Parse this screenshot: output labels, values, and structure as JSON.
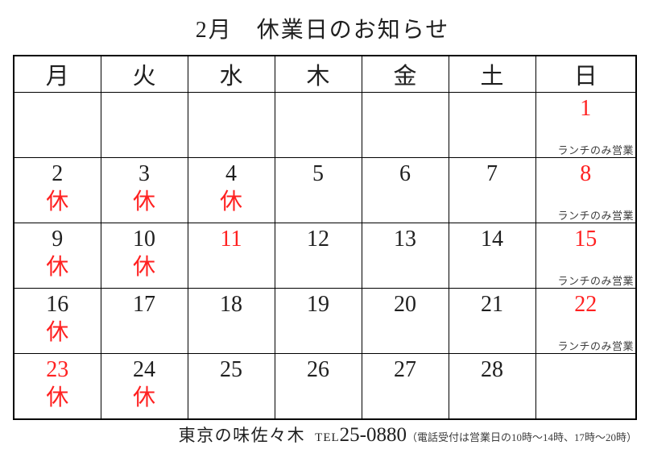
{
  "title": "2月　休業日のお知らせ",
  "weekday_headers": [
    "月",
    "火",
    "水",
    "木",
    "金",
    "土",
    "日"
  ],
  "labels": {
    "closed": "休",
    "lunch_only": "ランチのみ営業"
  },
  "colors": {
    "red": "#ff2121",
    "ink": "#1f1f1f",
    "note": "#3d3d3d"
  },
  "weeks": [
    [
      {
        "day": ""
      },
      {
        "day": ""
      },
      {
        "day": ""
      },
      {
        "day": ""
      },
      {
        "day": ""
      },
      {
        "day": ""
      },
      {
        "day": "1",
        "red": true,
        "lunch": true
      }
    ],
    [
      {
        "day": "2",
        "closed": true
      },
      {
        "day": "3",
        "closed": true
      },
      {
        "day": "4",
        "closed": true
      },
      {
        "day": "5"
      },
      {
        "day": "6"
      },
      {
        "day": "7"
      },
      {
        "day": "8",
        "red": true,
        "lunch": true
      }
    ],
    [
      {
        "day": "9",
        "closed": true
      },
      {
        "day": "10",
        "closed": true
      },
      {
        "day": "11",
        "red": true
      },
      {
        "day": "12"
      },
      {
        "day": "13"
      },
      {
        "day": "14"
      },
      {
        "day": "15",
        "red": true,
        "lunch": true
      }
    ],
    [
      {
        "day": "16",
        "closed": true
      },
      {
        "day": "17"
      },
      {
        "day": "18"
      },
      {
        "day": "19"
      },
      {
        "day": "20"
      },
      {
        "day": "21"
      },
      {
        "day": "22",
        "red": true,
        "lunch": true
      }
    ],
    [
      {
        "day": "23",
        "red": true,
        "closed": true
      },
      {
        "day": "24",
        "closed": true
      },
      {
        "day": "25"
      },
      {
        "day": "26"
      },
      {
        "day": "27"
      },
      {
        "day": "28"
      },
      {
        "day": ""
      }
    ]
  ],
  "footer": {
    "shop_name": "東京の味佐々木",
    "tel_label": "TEL",
    "tel_number": "25-0880",
    "tel_note": "（電話受付は営業日の10時～14時、17時～20時）"
  }
}
